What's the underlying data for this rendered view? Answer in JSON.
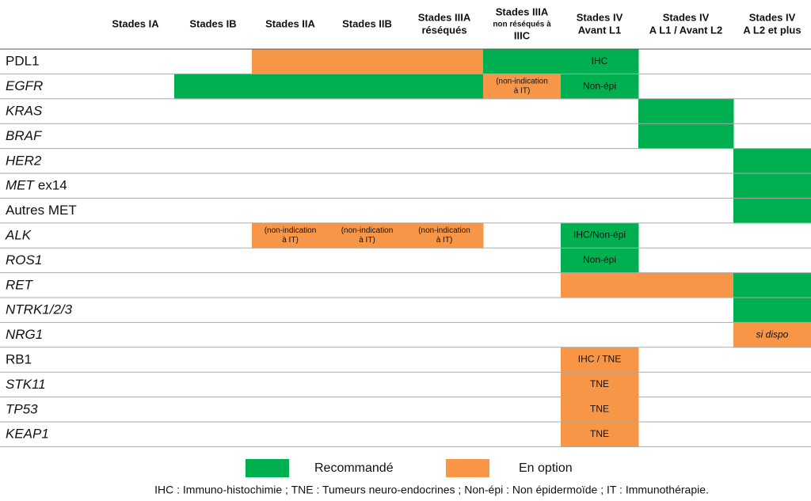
{
  "table": {
    "headers": [
      [
        "Stades IA"
      ],
      [
        "Stades IB"
      ],
      [
        "Stades IIA"
      ],
      [
        "Stades IIB"
      ],
      [
        "Stades IIIA",
        "réséqués"
      ],
      [
        "Stades IIIA",
        "non réséqués à",
        "IIIC"
      ],
      [
        "Stades IV",
        "Avant L1"
      ],
      [
        "Stades IV",
        "A L1 / Avant L2"
      ],
      [
        "Stades IV",
        "A L2 et plus"
      ]
    ],
    "rows": [
      {
        "label": [
          {
            "text": "PDL1",
            "italic": false
          }
        ],
        "cells": [
          null,
          null,
          {
            "status": "option"
          },
          {
            "status": "option"
          },
          {
            "status": "option"
          },
          {
            "status": "rec"
          },
          {
            "status": "rec",
            "text": [
              "IHC"
            ]
          },
          null,
          null
        ]
      },
      {
        "label": [
          {
            "text": "EGFR",
            "italic": true
          }
        ],
        "cells": [
          null,
          {
            "status": "rec"
          },
          {
            "status": "rec"
          },
          {
            "status": "rec"
          },
          {
            "status": "rec"
          },
          {
            "status": "option",
            "text": [
              "(non-indication",
              "à IT)"
            ]
          },
          {
            "status": "rec",
            "text": [
              "Non-épi"
            ]
          },
          null,
          null
        ]
      },
      {
        "label": [
          {
            "text": "KRAS",
            "italic": true
          }
        ],
        "cells": [
          null,
          null,
          null,
          null,
          null,
          null,
          null,
          {
            "status": "rec"
          },
          null
        ]
      },
      {
        "label": [
          {
            "text": "BRAF",
            "italic": true
          }
        ],
        "cells": [
          null,
          null,
          null,
          null,
          null,
          null,
          null,
          {
            "status": "rec"
          },
          null
        ]
      },
      {
        "label": [
          {
            "text": "HER2",
            "italic": true
          }
        ],
        "cells": [
          null,
          null,
          null,
          null,
          null,
          null,
          null,
          null,
          {
            "status": "rec"
          }
        ]
      },
      {
        "label": [
          {
            "text": "MET",
            "italic": true
          },
          {
            "text": "ex14",
            "italic": false
          }
        ],
        "cells": [
          null,
          null,
          null,
          null,
          null,
          null,
          null,
          null,
          {
            "status": "rec"
          }
        ]
      },
      {
        "label": [
          {
            "text": "Autres MET",
            "italic": false
          }
        ],
        "cells": [
          null,
          null,
          null,
          null,
          null,
          null,
          null,
          null,
          {
            "status": "rec"
          }
        ]
      },
      {
        "label": [
          {
            "text": "ALK",
            "italic": true
          }
        ],
        "cells": [
          null,
          null,
          {
            "status": "option",
            "text": [
              "(non-indication",
              "à IT)"
            ]
          },
          {
            "status": "option",
            "text": [
              "(non-indication",
              "à IT)"
            ]
          },
          {
            "status": "option",
            "text": [
              "(non-indication",
              "à IT)"
            ]
          },
          null,
          {
            "status": "rec",
            "text": [
              "IHC/Non-épi"
            ]
          },
          null,
          null
        ]
      },
      {
        "label": [
          {
            "text": "ROS1",
            "italic": true
          }
        ],
        "cells": [
          null,
          null,
          null,
          null,
          null,
          null,
          {
            "status": "rec",
            "text": [
              "Non-épi"
            ]
          },
          null,
          null
        ]
      },
      {
        "label": [
          {
            "text": "RET",
            "italic": true
          }
        ],
        "cells": [
          null,
          null,
          null,
          null,
          null,
          null,
          {
            "status": "option"
          },
          {
            "status": "option"
          },
          {
            "status": "rec"
          }
        ]
      },
      {
        "label": [
          {
            "text": "NTRK1/2/3",
            "italic": true
          }
        ],
        "cells": [
          null,
          null,
          null,
          null,
          null,
          null,
          null,
          null,
          {
            "status": "rec"
          }
        ]
      },
      {
        "label": [
          {
            "text": "NRG1",
            "italic": true
          }
        ],
        "cells": [
          null,
          null,
          null,
          null,
          null,
          null,
          null,
          null,
          {
            "status": "option",
            "text": [
              "si dispo"
            ],
            "italic": true
          }
        ]
      },
      {
        "label": [
          {
            "text": "RB1",
            "italic": false
          }
        ],
        "cells": [
          null,
          null,
          null,
          null,
          null,
          null,
          {
            "status": "option",
            "text": [
              "IHC / TNE"
            ]
          },
          null,
          null
        ]
      },
      {
        "label": [
          {
            "text": "STK11",
            "italic": true
          }
        ],
        "cells": [
          null,
          null,
          null,
          null,
          null,
          null,
          {
            "status": "option",
            "text": [
              "TNE"
            ]
          },
          null,
          null
        ]
      },
      {
        "label": [
          {
            "text": "TP53",
            "italic": true
          }
        ],
        "cells": [
          null,
          null,
          null,
          null,
          null,
          null,
          {
            "status": "option",
            "text": [
              "TNE"
            ]
          },
          null,
          null
        ]
      },
      {
        "label": [
          {
            "text": "KEAP1",
            "italic": true
          }
        ],
        "cells": [
          null,
          null,
          null,
          null,
          null,
          null,
          {
            "status": "option",
            "text": [
              "TNE"
            ]
          },
          null,
          null
        ]
      }
    ]
  },
  "legend": [
    {
      "status": "rec",
      "label": "Recommandé",
      "color": "#00b050"
    },
    {
      "status": "option",
      "label": "En option",
      "color": "#f79646"
    }
  ],
  "footnote": "IHC : Immuno-histochimie ; TNE : Tumeurs neuro-endocrines ; Non-épi : Non épidermoïde ; IT : Immunothérapie."
}
